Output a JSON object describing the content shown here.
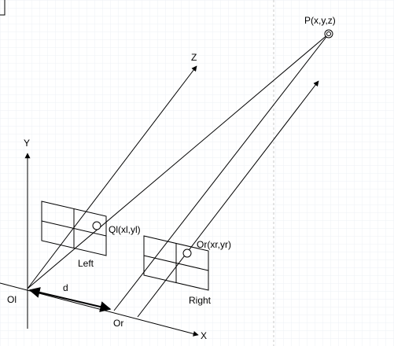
{
  "colors": {
    "background": "#ffffff",
    "stroke": "#000000",
    "grid": "#eef1f5",
    "guide": "#c8c8c8"
  },
  "labels": {
    "point": "P(x,y,z)",
    "z_axis": "Z",
    "y_axis": "Y",
    "x_axis": "X",
    "left_point": "Ql(xl,yl)",
    "right_point": "Or(xr,yr)",
    "left_image": "Left",
    "right_image": "Right",
    "left_origin": "Ol",
    "right_origin": "Or",
    "baseline": "d"
  }
}
